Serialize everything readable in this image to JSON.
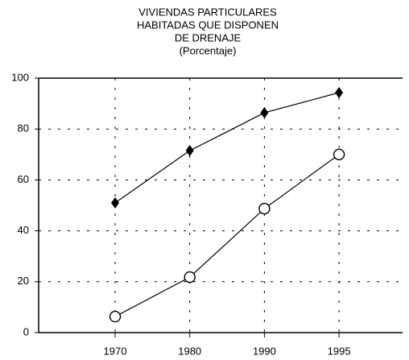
{
  "chart_data": {
    "type": "line",
    "title": [
      "VIVIENDAS PARTICULARES",
      "HABITADAS QUE DISPONEN",
      "DE DRENAJE"
    ],
    "subtitle": "(Porcentaje)",
    "categories": [
      "1970",
      "1980",
      "1990",
      "1995"
    ],
    "series": [
      {
        "color": "#000000",
        "marker": "diamond",
        "values": [
          51,
          71.5,
          86.4,
          94.3
        ]
      },
      {
        "color": "#000000",
        "marker": "circle",
        "values": [
          6.3,
          21.8,
          48.7,
          70
        ]
      }
    ],
    "ylim": [
      0,
      100
    ],
    "yticks": [
      0,
      20,
      40,
      60,
      80,
      100
    ],
    "grid": true
  }
}
